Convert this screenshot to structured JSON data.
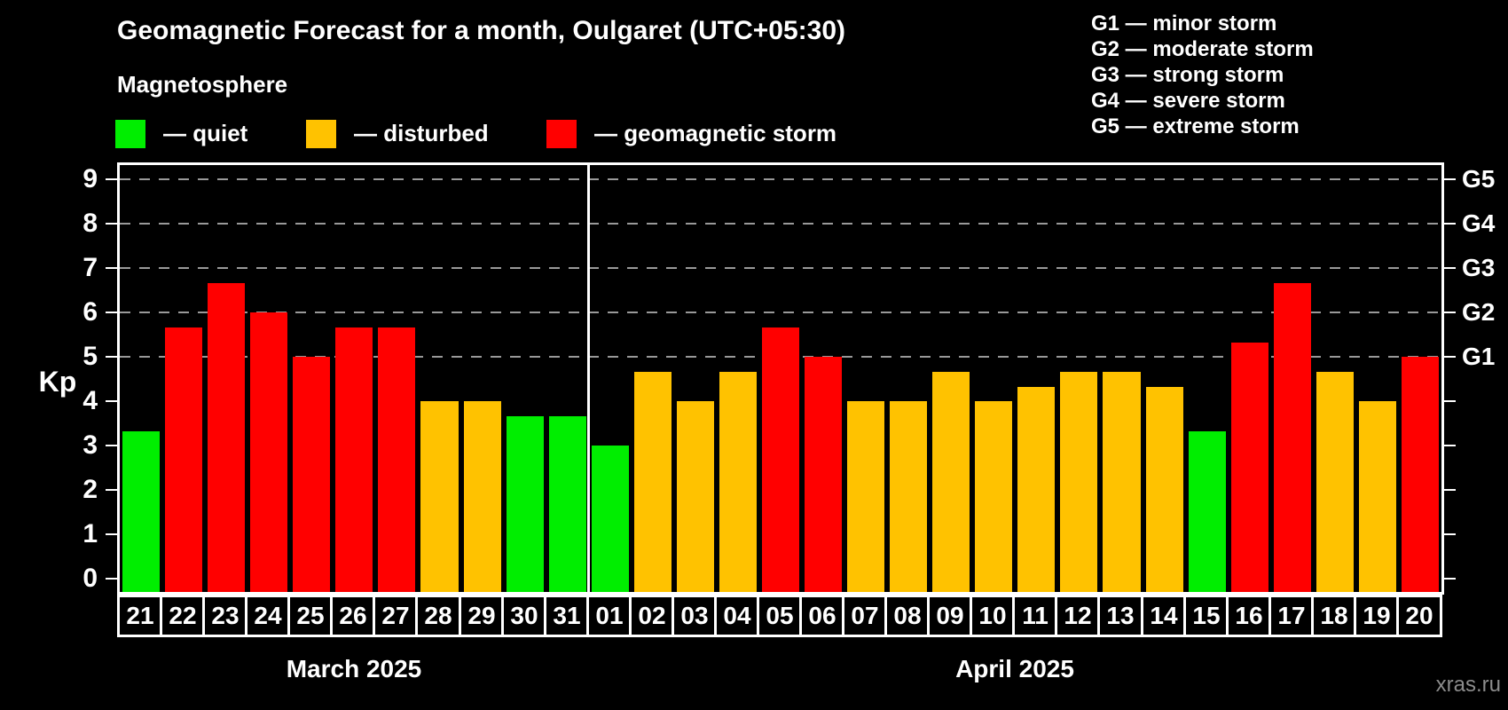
{
  "header": {
    "title": "Geomagnetic Forecast for a month, Oulgaret (UTC+05:30)",
    "subtitle": "Magnetosphere",
    "legend": [
      {
        "key": "quiet",
        "label": "— quiet"
      },
      {
        "key": "disturbed",
        "label": "— disturbed"
      },
      {
        "key": "storm",
        "label": "— geomagnetic storm"
      }
    ],
    "g_scale": [
      "G1 — minor storm",
      "G2 — moderate storm",
      "G3 — strong storm",
      "G4 — severe storm",
      "G5 — extreme storm"
    ]
  },
  "colors": {
    "quiet": "#00ee00",
    "disturbed": "#ffc200",
    "storm": "#ff0000",
    "grid": "#999999",
    "frame": "#ffffff",
    "watermark": "#8c8c8c"
  },
  "axis": {
    "y_label": "Kp",
    "y_ticks": [
      0,
      1,
      2,
      3,
      4,
      5,
      6,
      7,
      8,
      9
    ],
    "g_levels": [
      {
        "label": "G1",
        "kp": 5
      },
      {
        "label": "G2",
        "kp": 6
      },
      {
        "label": "G3",
        "kp": 7
      },
      {
        "label": "G4",
        "kp": 8
      },
      {
        "label": "G5",
        "kp": 9
      }
    ]
  },
  "watermark": "xras.ru",
  "chart_data": {
    "type": "bar",
    "title": "Geomagnetic Forecast for a month, Oulgaret (UTC+05:30)",
    "ylabel": "Kp",
    "ylim": [
      0,
      9.6
    ],
    "grid": "dashed horizontal at Kp 5-9 only",
    "legend_position": "top-left and top-right",
    "months": [
      {
        "label": "March 2025",
        "count": 11
      },
      {
        "label": "April 2025",
        "count": 20
      }
    ],
    "points": [
      {
        "month": "March",
        "day": "21",
        "kp": 3.33,
        "status": "quiet"
      },
      {
        "month": "March",
        "day": "22",
        "kp": 5.67,
        "status": "storm"
      },
      {
        "month": "March",
        "day": "23",
        "kp": 6.67,
        "status": "storm"
      },
      {
        "month": "March",
        "day": "24",
        "kp": 6.0,
        "status": "storm"
      },
      {
        "month": "March",
        "day": "25",
        "kp": 5.0,
        "status": "storm"
      },
      {
        "month": "March",
        "day": "26",
        "kp": 5.67,
        "status": "storm"
      },
      {
        "month": "March",
        "day": "27",
        "kp": 5.67,
        "status": "storm"
      },
      {
        "month": "March",
        "day": "28",
        "kp": 4.0,
        "status": "disturbed"
      },
      {
        "month": "March",
        "day": "29",
        "kp": 4.0,
        "status": "disturbed"
      },
      {
        "month": "March",
        "day": "30",
        "kp": 3.67,
        "status": "quiet"
      },
      {
        "month": "March",
        "day": "31",
        "kp": 3.67,
        "status": "quiet"
      },
      {
        "month": "April",
        "day": "01",
        "kp": 3.0,
        "status": "quiet"
      },
      {
        "month": "April",
        "day": "02",
        "kp": 4.67,
        "status": "disturbed"
      },
      {
        "month": "April",
        "day": "03",
        "kp": 4.0,
        "status": "disturbed"
      },
      {
        "month": "April",
        "day": "04",
        "kp": 4.67,
        "status": "disturbed"
      },
      {
        "month": "April",
        "day": "05",
        "kp": 5.67,
        "status": "storm"
      },
      {
        "month": "April",
        "day": "06",
        "kp": 5.0,
        "status": "storm"
      },
      {
        "month": "April",
        "day": "07",
        "kp": 4.0,
        "status": "disturbed"
      },
      {
        "month": "April",
        "day": "08",
        "kp": 4.0,
        "status": "disturbed"
      },
      {
        "month": "April",
        "day": "09",
        "kp": 4.67,
        "status": "disturbed"
      },
      {
        "month": "April",
        "day": "10",
        "kp": 4.0,
        "status": "disturbed"
      },
      {
        "month": "April",
        "day": "11",
        "kp": 4.33,
        "status": "disturbed"
      },
      {
        "month": "April",
        "day": "12",
        "kp": 4.67,
        "status": "disturbed"
      },
      {
        "month": "April",
        "day": "13",
        "kp": 4.67,
        "status": "disturbed"
      },
      {
        "month": "April",
        "day": "14",
        "kp": 4.33,
        "status": "disturbed"
      },
      {
        "month": "April",
        "day": "15",
        "kp": 3.33,
        "status": "quiet"
      },
      {
        "month": "April",
        "day": "16",
        "kp": 5.33,
        "status": "storm"
      },
      {
        "month": "April",
        "day": "17",
        "kp": 6.67,
        "status": "storm"
      },
      {
        "month": "April",
        "day": "18",
        "kp": 4.67,
        "status": "disturbed"
      },
      {
        "month": "April",
        "day": "19",
        "kp": 4.0,
        "status": "disturbed"
      },
      {
        "month": "April",
        "day": "20",
        "kp": 5.0,
        "status": "storm"
      }
    ],
    "gridlines_at_kp": [
      5,
      6,
      7,
      8,
      9
    ]
  }
}
